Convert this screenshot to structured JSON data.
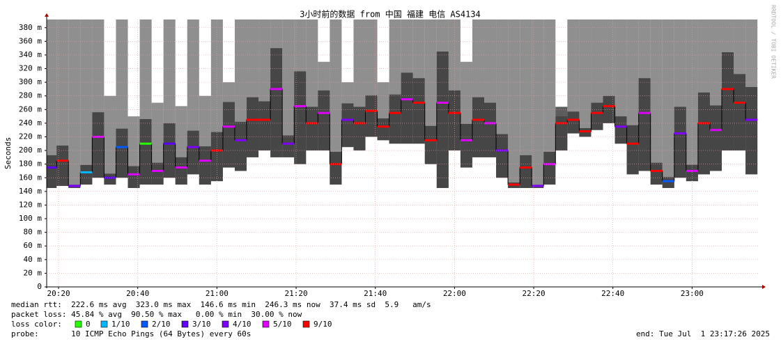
{
  "chart_data": {
    "type": "smokeping",
    "title": "3小时前的数据 from 中国 福建 电信 AS4134",
    "y_label": "Seconds",
    "watermark": "RRDTOOL / TOBI OETIKER",
    "x": [
      "20:18",
      "20:21",
      "20:24",
      "20:27",
      "20:30",
      "20:33",
      "20:36",
      "20:39",
      "20:42",
      "20:45",
      "20:48",
      "20:51",
      "20:54",
      "20:57",
      "21:00",
      "21:03",
      "21:06",
      "21:09",
      "21:12",
      "21:15",
      "21:18",
      "21:21",
      "21:24",
      "21:27",
      "21:30",
      "21:33",
      "21:36",
      "21:39",
      "21:42",
      "21:45",
      "21:48",
      "21:51",
      "21:54",
      "21:57",
      "22:00",
      "22:03",
      "22:06",
      "22:09",
      "22:12",
      "22:15",
      "22:18",
      "22:21",
      "22:24",
      "22:27",
      "22:30",
      "22:33",
      "22:36",
      "22:39",
      "22:42",
      "22:45",
      "22:48",
      "22:51",
      "22:54",
      "22:57",
      "23:00",
      "23:03",
      "23:06",
      "23:09",
      "23:12",
      "23:15"
    ],
    "median": [
      0.175,
      0.185,
      0.148,
      0.168,
      0.22,
      0.16,
      0.205,
      0.165,
      0.21,
      0.17,
      0.21,
      0.175,
      0.205,
      0.185,
      0.2,
      0.235,
      0.215,
      0.245,
      0.245,
      0.29,
      0.21,
      0.265,
      0.24,
      0.255,
      0.18,
      0.245,
      0.24,
      0.258,
      0.235,
      0.255,
      0.275,
      0.27,
      0.215,
      0.27,
      0.255,
      0.215,
      0.245,
      0.24,
      0.2,
      0.15,
      0.175,
      0.148,
      0.18,
      0.24,
      0.245,
      0.228,
      0.255,
      0.265,
      0.235,
      0.21,
      0.255,
      0.17,
      0.155,
      0.225,
      0.17,
      0.24,
      0.23,
      0.29,
      0.27,
      0.245
    ],
    "smoke_low": [
      0.145,
      0.148,
      0.145,
      0.15,
      0.16,
      0.15,
      0.16,
      0.145,
      0.15,
      0.15,
      0.16,
      0.15,
      0.165,
      0.15,
      0.155,
      0.175,
      0.17,
      0.19,
      0.2,
      0.19,
      0.19,
      0.18,
      0.2,
      0.2,
      0.15,
      0.205,
      0.2,
      0.22,
      0.215,
      0.21,
      0.21,
      0.21,
      0.18,
      0.145,
      0.2,
      0.175,
      0.19,
      0.19,
      0.16,
      0.145,
      0.145,
      0.145,
      0.15,
      0.2,
      0.225,
      0.22,
      0.23,
      0.24,
      0.21,
      0.165,
      0.17,
      0.15,
      0.145,
      0.16,
      0.155,
      0.165,
      0.17,
      0.2,
      0.2,
      0.165
    ],
    "smoke_high": [
      0.392,
      0.392,
      0.392,
      0.392,
      0.392,
      0.28,
      0.392,
      0.25,
      0.392,
      0.27,
      0.392,
      0.265,
      0.392,
      0.28,
      0.392,
      0.3,
      0.392,
      0.392,
      0.392,
      0.392,
      0.392,
      0.392,
      0.392,
      0.33,
      0.392,
      0.3,
      0.392,
      0.392,
      0.3,
      0.392,
      0.392,
      0.392,
      0.392,
      0.392,
      0.392,
      0.33,
      0.392,
      0.392,
      0.392,
      0.392,
      0.392,
      0.392,
      0.392,
      0.25,
      0.392,
      0.392,
      0.392,
      0.392,
      0.392,
      0.392,
      0.392,
      0.392,
      0.392,
      0.392,
      0.392,
      0.392,
      0.392,
      0.392,
      0.392,
      0.392
    ],
    "loss": [
      "3/10",
      "9/10",
      "4/10",
      "1/10",
      "5/10",
      "3/10",
      "2/10",
      "5/10",
      "0",
      "5/10",
      "3/10",
      "5/10",
      "4/10",
      "5/10",
      "9/10",
      "5/10",
      "4/10",
      "9/10",
      "9/10",
      "5/10",
      "4/10",
      "5/10",
      "9/10",
      "5/10",
      "9/10",
      "4/10",
      "9/10",
      "9/10",
      "9/10",
      "9/10",
      "5/10",
      "9/10",
      "9/10",
      "5/10",
      "9/10",
      "5/10",
      "9/10",
      "5/10",
      "4/10",
      "9/10",
      "9/10",
      "4/10",
      "5/10",
      "9/10",
      "9/10",
      "9/10",
      "9/10",
      "9/10",
      "4/10",
      "9/10",
      "5/10",
      "9/10",
      "2/10",
      "4/10",
      "5/10",
      "9/10",
      "5/10",
      "9/10",
      "9/10",
      "4/10"
    ],
    "xlim": [
      "20:17",
      "23:17"
    ],
    "xticks": [
      "20:20",
      "20:40",
      "21:00",
      "21:20",
      "21:40",
      "22:00",
      "22:20",
      "22:40",
      "23:00"
    ],
    "ylim": [
      0,
      0.392
    ],
    "yticks": [
      0,
      {
        "value": 0.02,
        "label": "20 m"
      },
      {
        "value": 0.04,
        "label": "40 m"
      },
      {
        "value": 0.06,
        "label": "60 m"
      },
      {
        "value": 0.08,
        "label": "80 m"
      },
      {
        "value": 0.1,
        "label": "100 m"
      },
      {
        "value": 0.12,
        "label": "120 m"
      },
      {
        "value": 0.14,
        "label": "140 m"
      },
      {
        "value": 0.16,
        "label": "160 m"
      },
      {
        "value": 0.18,
        "label": "180 m"
      },
      {
        "value": 0.2,
        "label": "200 m"
      },
      {
        "value": 0.22,
        "label": "220 m"
      },
      {
        "value": 0.24,
        "label": "240 m"
      },
      {
        "value": 0.26,
        "label": "260 m"
      },
      {
        "value": 0.28,
        "label": "280 m"
      },
      {
        "value": 0.3,
        "label": "300 m"
      },
      {
        "value": 0.32,
        "label": "320 m"
      },
      {
        "value": 0.34,
        "label": "340 m"
      },
      {
        "value": 0.36,
        "label": "360 m"
      },
      {
        "value": 0.38,
        "label": "380 m"
      }
    ],
    "grid": true,
    "smoke_color": "#6a6a6a",
    "line_color": "#000000",
    "loss_legend": {
      "title": "loss color:",
      "entries": [
        {
          "name": "0",
          "color": "#26ff00"
        },
        {
          "name": "1/10",
          "color": "#00b8ff"
        },
        {
          "name": "2/10",
          "color": "#0059ff"
        },
        {
          "name": "3/10",
          "color": "#5e00ff"
        },
        {
          "name": "4/10",
          "color": "#7e00ff"
        },
        {
          "name": "5/10",
          "color": "#dd00ff"
        },
        {
          "name": "9/10",
          "color": "#ff0000"
        }
      ]
    }
  },
  "stats": {
    "median_rtt": "median rtt:  222.6 ms avg  323.0 ms max  146.6 ms min  246.3 ms now  37.4 ms sd  5.9   am/s",
    "packet_loss": "packet loss: 45.84 % avg  90.50 % max   0.00 % min  30.00 % now",
    "probe": "probe:       10 ICMP Echo Pings (64 Bytes) every 60s",
    "end": "end: Tue Jul  1 23:17:26 2025"
  }
}
